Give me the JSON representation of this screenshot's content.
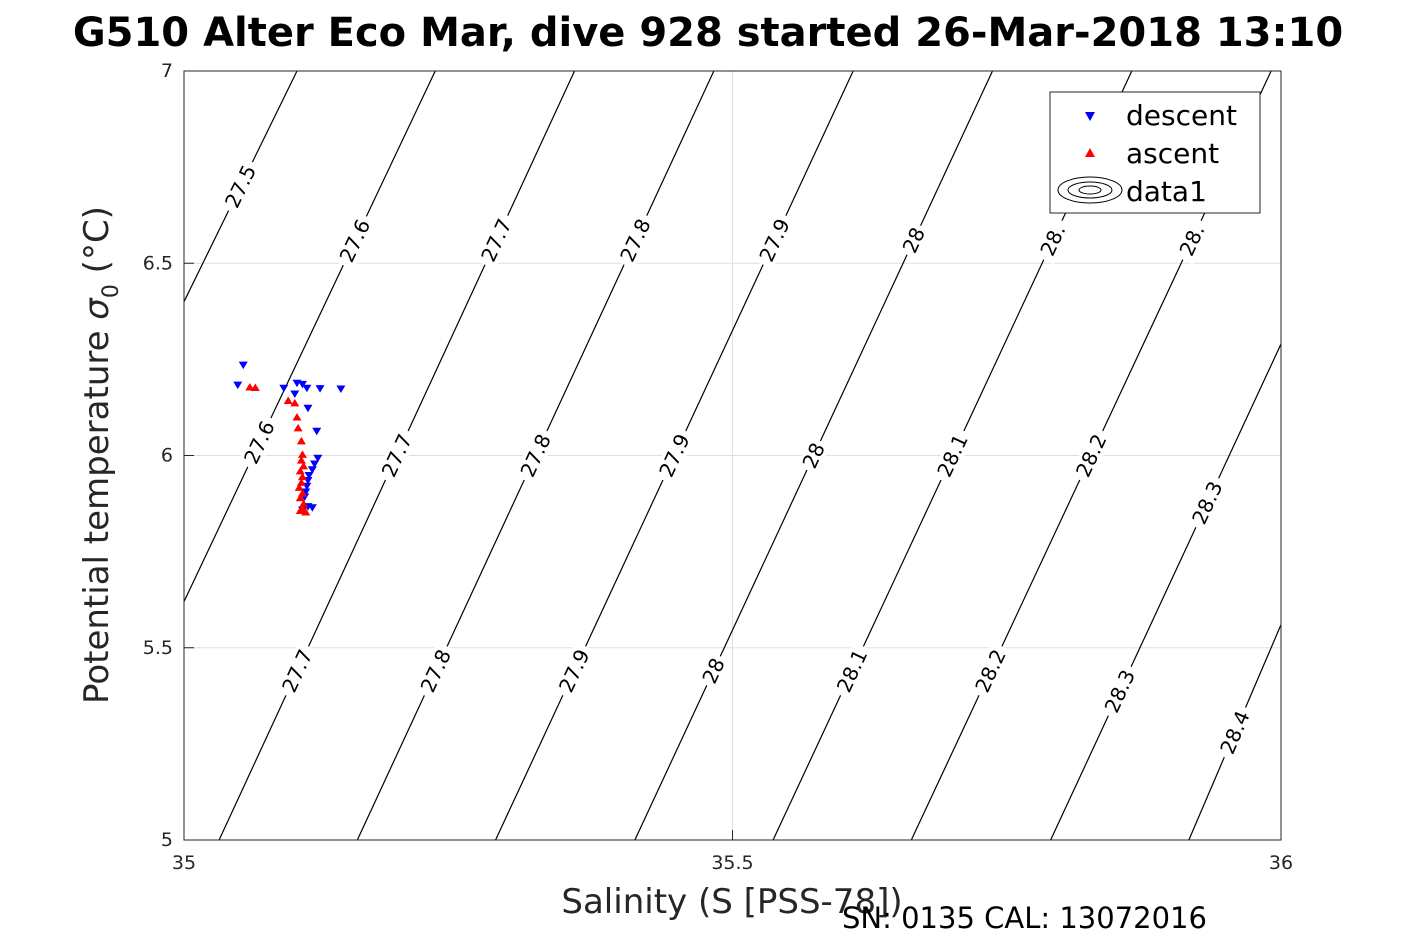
{
  "chart_data": {
    "type": "scatter",
    "title": "G510 Alter Eco Mar, dive 928 started 26-Mar-2018 13:10",
    "xlabel": "Salinity (S [PSS-78])",
    "ylabel_text": "Potential temperature ",
    "ylabel_symbol": "σ",
    "ylabel_subscript": "0",
    "ylabel_unit": " (°C)",
    "footer": "SN: 0135  CAL: 13072016",
    "xlim": [
      35,
      36
    ],
    "ylim": [
      5,
      7
    ],
    "xticks": [
      35,
      35.5,
      36
    ],
    "xtick_labels": [
      "35",
      "35.5",
      "36"
    ],
    "yticks": [
      5,
      5.5,
      6,
      6.5,
      7
    ],
    "ytick_labels": [
      "5",
      "5.5",
      "6",
      "6.5",
      "7"
    ],
    "grid": true,
    "legend_position": "top-right",
    "legend": [
      "descent",
      "ascent",
      "data1"
    ],
    "series": [
      {
        "name": "descent",
        "marker": "triangle-down",
        "color": "#0000ff",
        "points": [
          [
            35.054,
            6.235
          ],
          [
            35.049,
            6.183
          ],
          [
            35.091,
            6.175
          ],
          [
            35.103,
            6.188
          ],
          [
            35.108,
            6.185
          ],
          [
            35.112,
            6.175
          ],
          [
            35.124,
            6.174
          ],
          [
            35.143,
            6.173
          ],
          [
            35.101,
            6.16
          ],
          [
            35.113,
            6.123
          ],
          [
            35.121,
            6.063
          ],
          [
            35.122,
            5.993
          ],
          [
            35.119,
            5.978
          ],
          [
            35.117,
            5.963
          ],
          [
            35.114,
            5.948
          ],
          [
            35.113,
            5.935
          ],
          [
            35.112,
            5.92
          ],
          [
            35.111,
            5.905
          ],
          [
            35.11,
            5.892
          ],
          [
            35.113,
            5.867
          ],
          [
            35.117,
            5.864
          ],
          [
            35.108,
            5.858
          ]
        ]
      },
      {
        "name": "ascent",
        "marker": "triangle-up",
        "color": "#ff0000",
        "points": [
          [
            35.06,
            6.178
          ],
          [
            35.065,
            6.177
          ],
          [
            35.095,
            6.143
          ],
          [
            35.101,
            6.137
          ],
          [
            35.103,
            6.1
          ],
          [
            35.104,
            6.072
          ],
          [
            35.107,
            6.038
          ],
          [
            35.108,
            6.003
          ],
          [
            35.107,
            5.988
          ],
          [
            35.109,
            5.973
          ],
          [
            35.106,
            5.96
          ],
          [
            35.108,
            5.945
          ],
          [
            35.107,
            5.93
          ],
          [
            35.105,
            5.917
          ],
          [
            35.108,
            5.902
          ],
          [
            35.106,
            5.89
          ],
          [
            35.109,
            5.875
          ],
          [
            35.108,
            5.862
          ],
          [
            35.111,
            5.853
          ],
          [
            35.106,
            5.857
          ]
        ]
      },
      {
        "name": "data1",
        "type": "contour",
        "color": "#000000",
        "levels": [
          27.5,
          27.6,
          27.7,
          27.8,
          27.9,
          28.0,
          28.1,
          28.2,
          28.3,
          28.4
        ],
        "lines": [
          {
            "level": 27.5,
            "points": [
              [
                35.0,
                6.4
              ],
              [
                35.103,
                7.0
              ]
            ],
            "labels": [
              "27.5"
            ]
          },
          {
            "level": 27.6,
            "points": [
              [
                35.0,
                5.62
              ],
              [
                35.229,
                7.0
              ]
            ],
            "labels": [
              "27.6",
              "27.6"
            ]
          },
          {
            "level": 27.7,
            "points": [
              [
                35.032,
                5.0
              ],
              [
                35.356,
                7.0
              ]
            ],
            "labels": [
              "27.7",
              "27.7",
              "27.7"
            ]
          },
          {
            "level": 27.8,
            "points": [
              [
                35.158,
                5.0
              ],
              [
                35.483,
                7.0
              ]
            ],
            "labels": [
              "27.8",
              "27.8",
              "27.8"
            ]
          },
          {
            "level": 27.9,
            "points": [
              [
                35.284,
                5.0
              ],
              [
                35.61,
                7.0
              ]
            ],
            "labels": [
              "27.9",
              "27.9",
              "27.9"
            ]
          },
          {
            "level": 28.0,
            "points": [
              [
                35.411,
                5.0
              ],
              [
                35.737,
                7.0
              ]
            ],
            "labels": [
              "28",
              "28",
              "28"
            ]
          },
          {
            "level": 28.1,
            "points": [
              [
                35.537,
                5.0
              ],
              [
                35.864,
                7.0
              ]
            ],
            "labels": [
              "28.1",
              "28.1",
              "28."
            ]
          },
          {
            "level": 28.2,
            "points": [
              [
                35.663,
                5.0
              ],
              [
                35.991,
                7.0
              ]
            ],
            "labels": [
              "28.2",
              "28.2",
              "28."
            ]
          },
          {
            "level": 28.3,
            "points": [
              [
                35.79,
                5.0
              ],
              [
                36.0,
                6.29
              ]
            ],
            "labels": [
              "28.3",
              "28.3"
            ]
          },
          {
            "level": 28.4,
            "points": [
              [
                35.916,
                5.0
              ],
              [
                36.0,
                5.56
              ]
            ],
            "labels": [
              "28.4"
            ]
          }
        ]
      }
    ]
  }
}
